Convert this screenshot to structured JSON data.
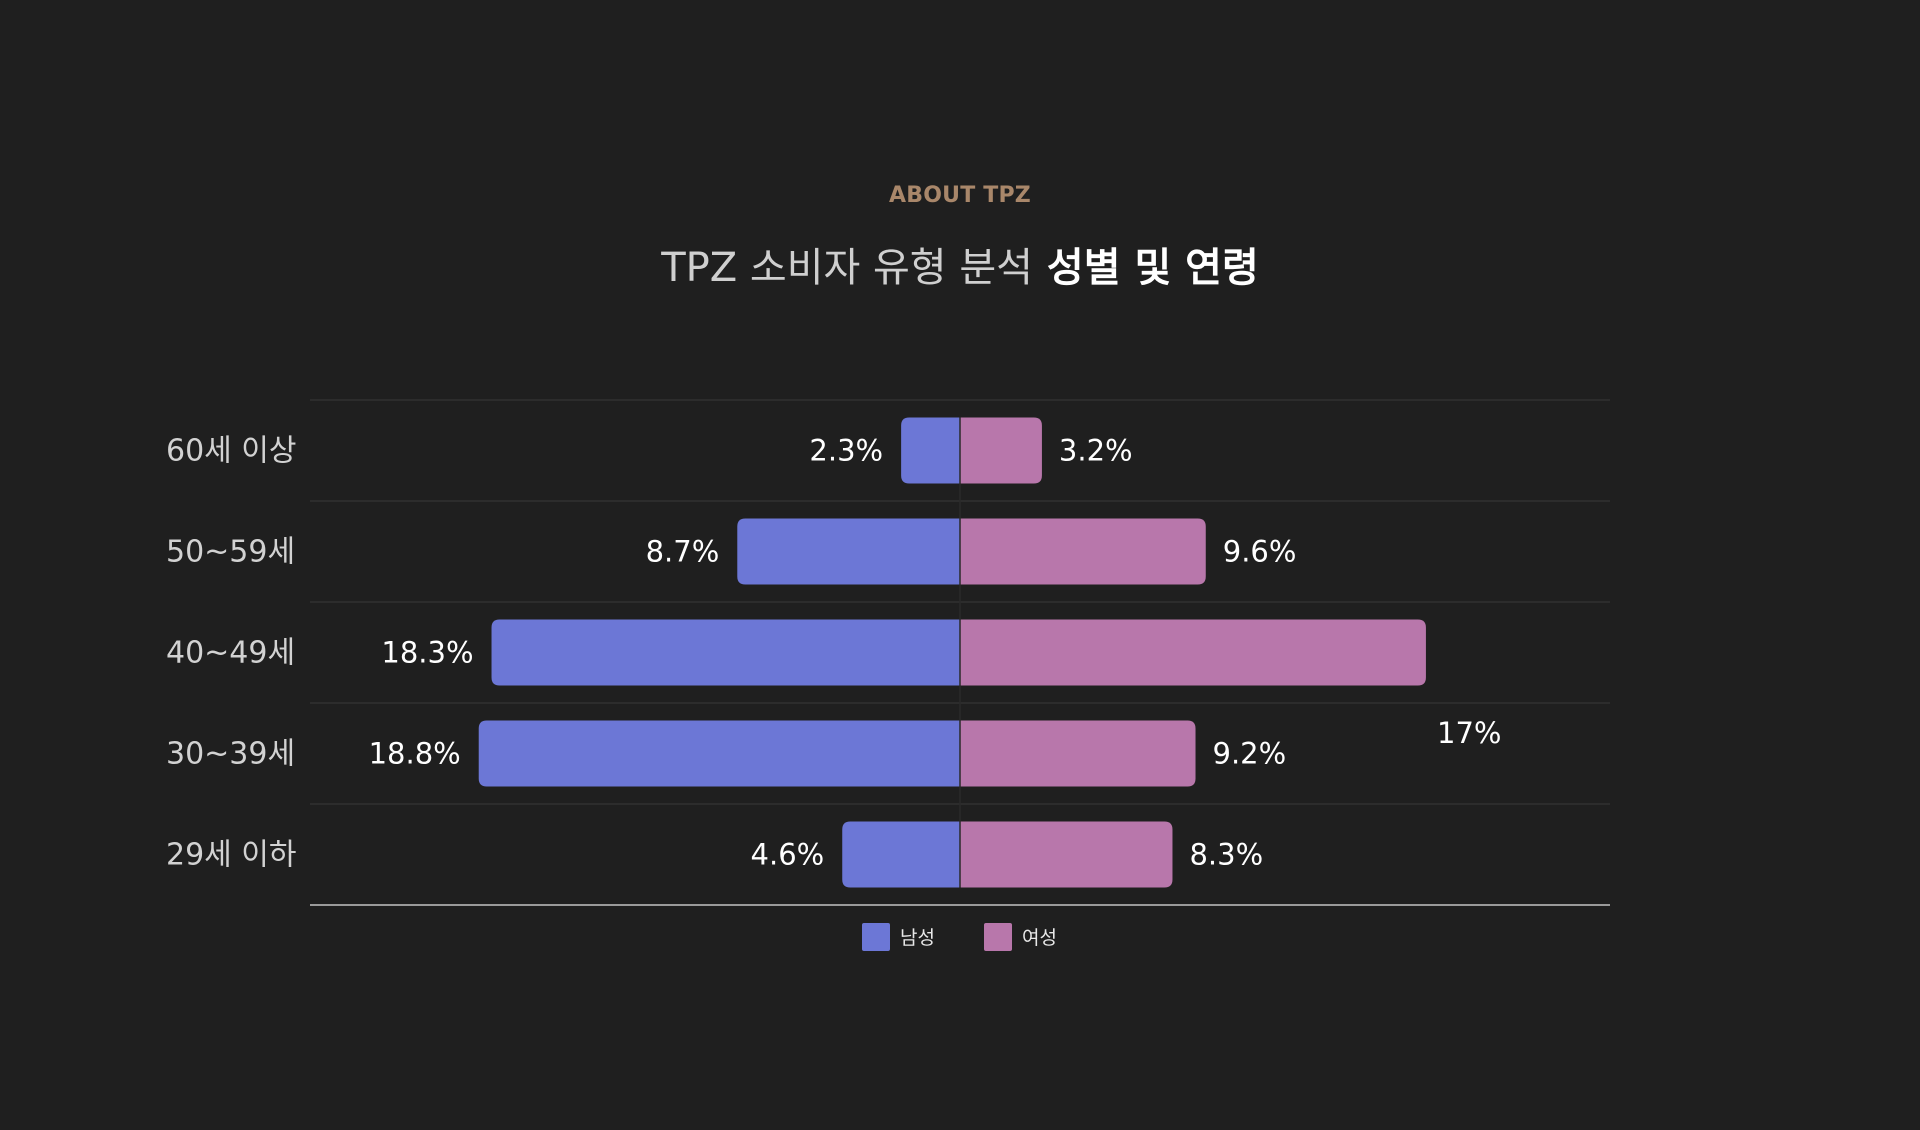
{
  "header": {
    "eyebrow": "ABOUT TPZ",
    "title_light": "TPZ 소비자 유형 분석",
    "title_bold": "성별 및 연령"
  },
  "chart_data": {
    "type": "bar",
    "orientation": "horizontal-diverging",
    "categories": [
      "60세 이상",
      "50~59세",
      "40~49세",
      "30~39세",
      "29세 이하"
    ],
    "series": [
      {
        "name": "남성",
        "color": "#6c77d6",
        "values": [
          2.3,
          8.7,
          18.3,
          18.8,
          4.6
        ],
        "labels": [
          "2.3%",
          "8.7%",
          "18.3%",
          "18.8%",
          "4.6%"
        ]
      },
      {
        "name": "여성",
        "color": "#b877ab",
        "values": [
          3.2,
          9.6,
          18.2,
          9.2,
          8.3
        ],
        "labels": [
          "3.2%",
          "9.6%",
          "",
          "9.2%",
          "8.3%"
        ]
      }
    ],
    "annotations": [
      {
        "text": "17%"
      }
    ],
    "legend_position": "bottom-center",
    "grid": true
  }
}
